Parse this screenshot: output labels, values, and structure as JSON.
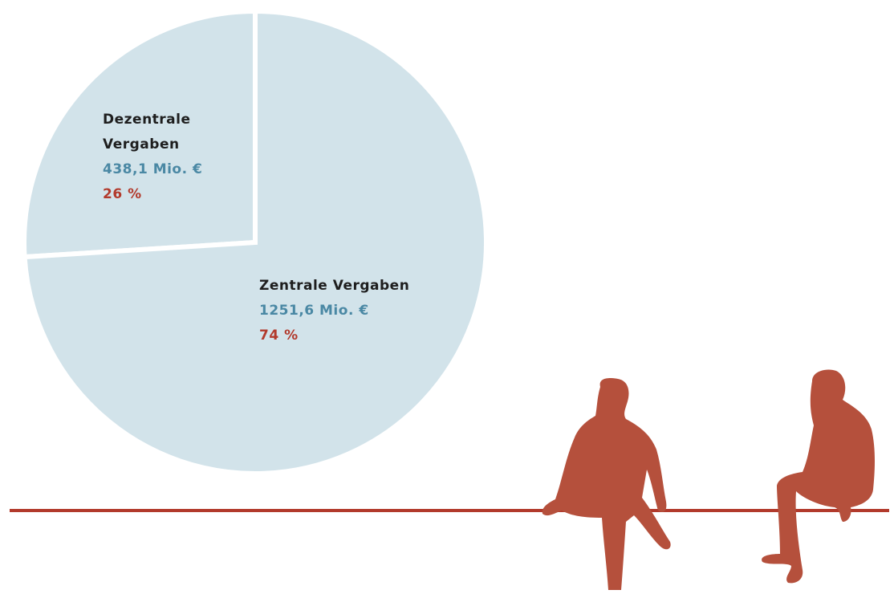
{
  "chart_data": {
    "type": "pie",
    "categories": [
      "Dezentrale Vergaben",
      "Zentrale Vergaben"
    ],
    "values": [
      26,
      74
    ],
    "value_labels": [
      "26 %",
      "74 %"
    ],
    "amounts": [
      438.1,
      1251.6
    ],
    "amount_labels": [
      "438,1 Mio. €",
      "1251,6 Mio. €"
    ],
    "colors": [
      "#d2e3ea",
      "#d2e3ea"
    ]
  }
}
